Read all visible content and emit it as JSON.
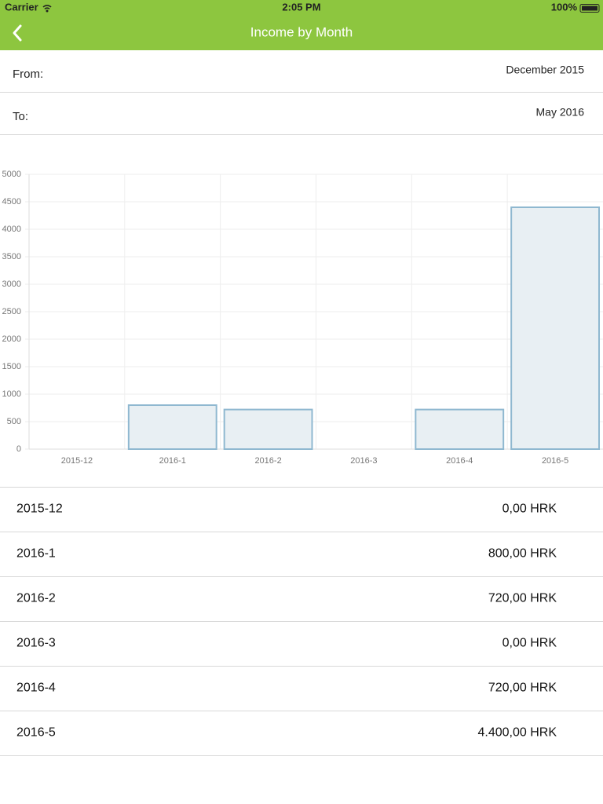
{
  "status_bar": {
    "carrier": "Carrier",
    "time": "2:05 PM",
    "battery": "100%"
  },
  "nav": {
    "title": "Income by Month"
  },
  "filters": {
    "from_label": "From:",
    "from_value": "December 2015",
    "to_label": "To:",
    "to_value": "May 2016"
  },
  "chart_data": {
    "type": "bar",
    "categories": [
      "2015-12",
      "2016-1",
      "2016-2",
      "2016-3",
      "2016-4",
      "2016-5"
    ],
    "values": [
      0,
      800,
      720,
      0,
      720,
      4400
    ],
    "color": "#e8eff3",
    "stroke": "#8fb8d0",
    "ylim": [
      0,
      5000
    ],
    "yticks": [
      0,
      500,
      1000,
      1500,
      2000,
      2500,
      3000,
      3500,
      4000,
      4500,
      5000
    ],
    "grid": true
  },
  "table": {
    "rows": [
      [
        "2015-12",
        "0,00 HRK"
      ],
      [
        "2016-1",
        "800,00 HRK"
      ],
      [
        "2016-2",
        "720,00 HRK"
      ],
      [
        "2016-3",
        "0,00 HRK"
      ],
      [
        "2016-4",
        "720,00 HRK"
      ],
      [
        "2016-5",
        "4.400,00 HRK"
      ]
    ]
  }
}
